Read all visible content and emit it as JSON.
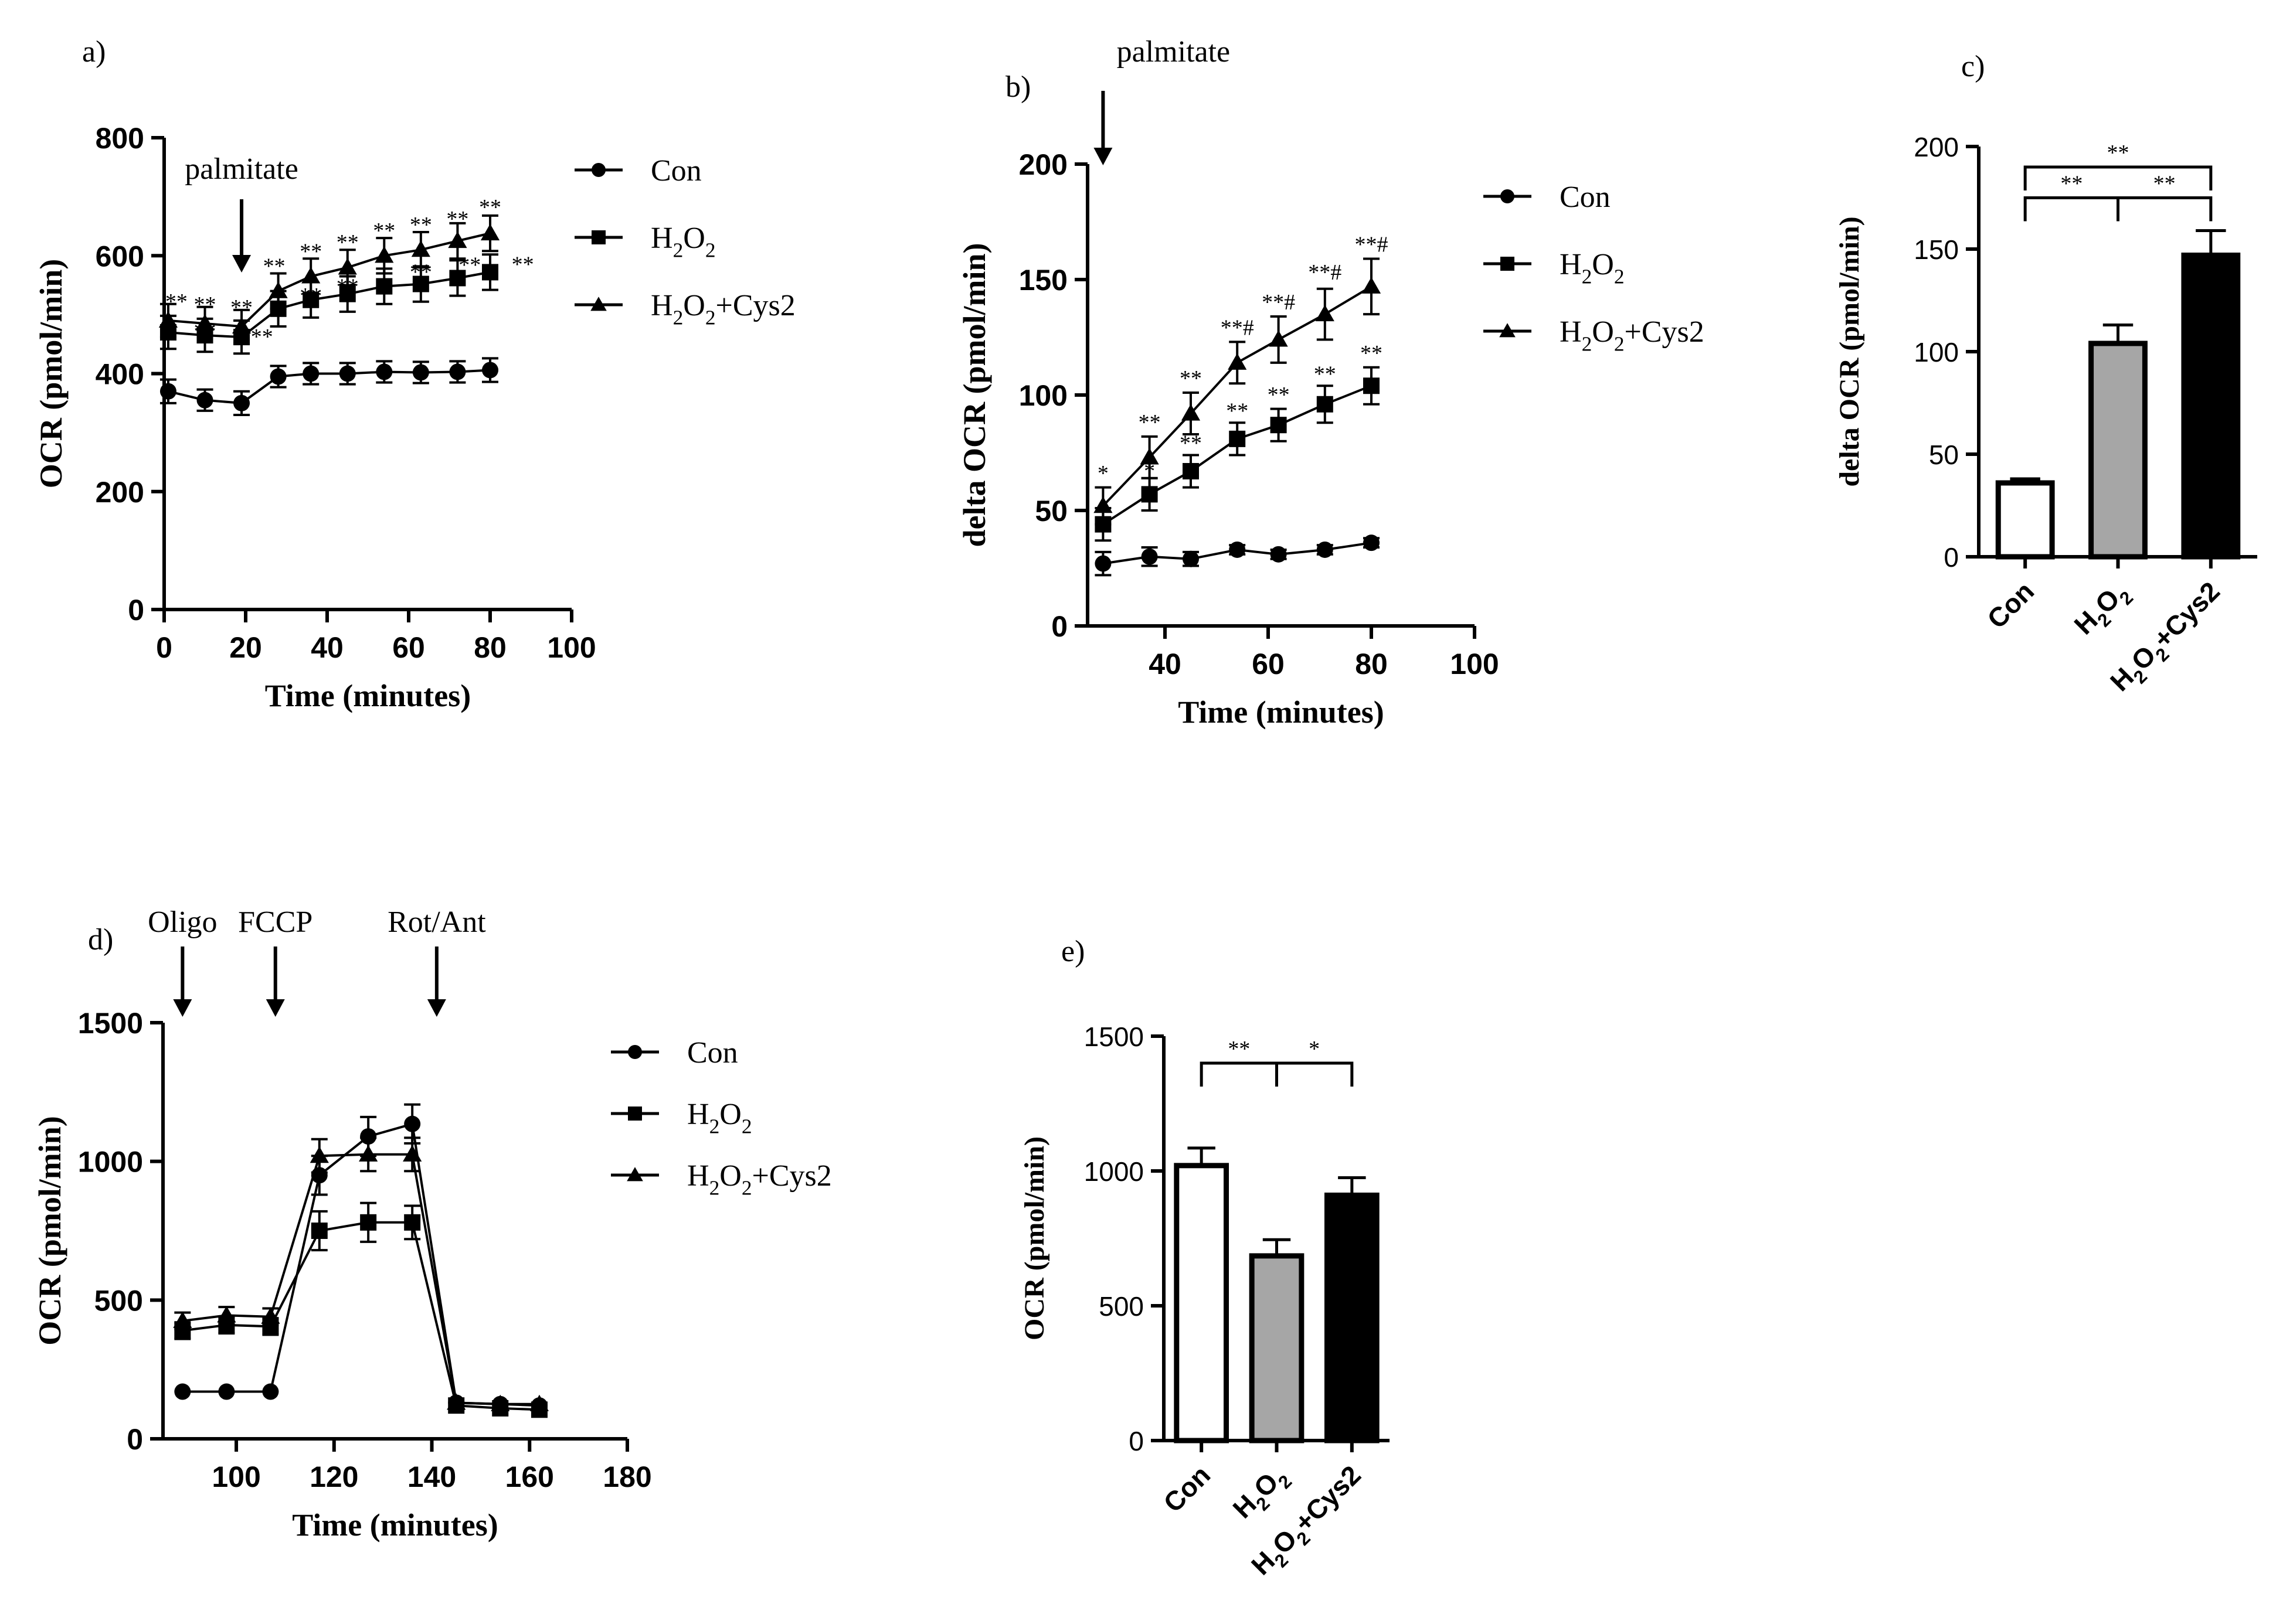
{
  "figure": {
    "series_names": [
      "Con",
      "H2O2",
      "H2O2+Cys2"
    ],
    "series_display": [
      {
        "main": "Con",
        "sub1": "",
        "mid": "",
        "sub2": "",
        "tail": ""
      },
      {
        "main": "H",
        "sub1": "2",
        "mid": "O",
        "sub2": "2",
        "tail": ""
      },
      {
        "main": "H",
        "sub1": "2",
        "mid": "O",
        "sub2": "2",
        "tail": "+Cys2"
      }
    ],
    "colors": {
      "con_bar": "#ffffff",
      "h2o2_bar": "#a6a6a6",
      "cys2_bar": "#000000",
      "ink": "#000000"
    }
  },
  "chart_data": [
    {
      "id": "a",
      "type": "line",
      "panel_label": "a)",
      "xlabel": "Time (minutes)",
      "ylabel": "OCR (pmol/min)",
      "xlim": [
        0,
        100
      ],
      "ylim": [
        0,
        800
      ],
      "xticks": [
        0,
        20,
        40,
        60,
        80,
        100
      ],
      "yticks": [
        0,
        200,
        400,
        600,
        800
      ],
      "annotations": [
        {
          "text": "palmitate",
          "x": 19
        }
      ],
      "series": [
        {
          "name": "Con",
          "marker": "circle",
          "x": [
            1,
            10,
            19,
            28,
            36,
            45,
            54,
            63,
            72,
            80
          ],
          "y": [
            370,
            355,
            350,
            395,
            400,
            400,
            403,
            402,
            403,
            406
          ],
          "err": [
            20,
            18,
            20,
            18,
            18,
            18,
            18,
            18,
            18,
            20
          ]
        },
        {
          "name": "H2O2",
          "marker": "square",
          "x": [
            1,
            10,
            19,
            28,
            36,
            45,
            54,
            63,
            72,
            80
          ],
          "y": [
            470,
            465,
            462,
            510,
            525,
            535,
            548,
            552,
            562,
            572
          ],
          "err": [
            28,
            28,
            28,
            30,
            30,
            30,
            30,
            30,
            30,
            30
          ]
        },
        {
          "name": "H2O2+Cys2",
          "marker": "triangle",
          "x": [
            1,
            10,
            19,
            28,
            36,
            45,
            54,
            63,
            72,
            80
          ],
          "y": [
            490,
            485,
            480,
            540,
            565,
            580,
            600,
            610,
            625,
            638
          ],
          "err": [
            28,
            28,
            28,
            30,
            30,
            30,
            30,
            30,
            30,
            30
          ]
        }
      ],
      "sig_labels": [
        {
          "text": "**",
          "x": 3,
          "y": 510
        },
        {
          "text": "**",
          "x": 10,
          "y": 505
        },
        {
          "text": "**",
          "x": 19,
          "y": 500
        },
        {
          "text": "**",
          "x": 27,
          "y": 570
        },
        {
          "text": "**",
          "x": 36,
          "y": 595
        },
        {
          "text": "**",
          "x": 45,
          "y": 610
        },
        {
          "text": "**",
          "x": 54,
          "y": 630
        },
        {
          "text": "**",
          "x": 63,
          "y": 640
        },
        {
          "text": "**",
          "x": 72,
          "y": 650
        },
        {
          "text": "**",
          "x": 80,
          "y": 670
        },
        {
          "text": "**",
          "x": 88,
          "y": 573
        },
        {
          "text": "**",
          "x": 10,
          "y": 460
        },
        {
          "text": "**",
          "x": 24,
          "y": 450
        },
        {
          "text": "**",
          "x": 36,
          "y": 520
        },
        {
          "text": "**",
          "x": 45,
          "y": 535
        },
        {
          "text": "**",
          "x": 63,
          "y": 560
        },
        {
          "text": "**",
          "x": 75,
          "y": 572
        }
      ]
    },
    {
      "id": "b",
      "type": "line",
      "panel_label": "b)",
      "xlabel": "Time (minutes)",
      "ylabel": "delta OCR (pmol/min)",
      "xlim": [
        25,
        100
      ],
      "ylim": [
        0,
        200
      ],
      "xticks": [
        40,
        60,
        80,
        100
      ],
      "yticks": [
        0,
        50,
        100,
        150,
        200
      ],
      "annotations": [
        {
          "text": "palmitate",
          "x": 28
        }
      ],
      "series": [
        {
          "name": "Con",
          "marker": "circle",
          "x": [
            28,
            37,
            45,
            54,
            62,
            71,
            80
          ],
          "y": [
            27,
            30,
            29,
            33,
            31,
            33,
            36
          ],
          "err": [
            5,
            4,
            3,
            2,
            2,
            2,
            2
          ]
        },
        {
          "name": "H2O2",
          "marker": "square",
          "x": [
            28,
            37,
            45,
            54,
            62,
            71,
            80
          ],
          "y": [
            44,
            57,
            67,
            81,
            87,
            96,
            104
          ],
          "err": [
            7,
            7,
            7,
            7,
            7,
            8,
            8
          ]
        },
        {
          "name": "H2O2+Cys2",
          "marker": "triangle",
          "x": [
            28,
            37,
            45,
            54,
            62,
            71,
            80
          ],
          "y": [
            52,
            73,
            92,
            114,
            124,
            135,
            147
          ],
          "err": [
            8,
            9,
            9,
            9,
            10,
            11,
            12
          ]
        }
      ],
      "sig_labels": [
        {
          "text": "*",
          "x": 28,
          "y": 63
        },
        {
          "text": "**",
          "x": 37,
          "y": 85
        },
        {
          "text": "**",
          "x": 45,
          "y": 104
        },
        {
          "text": "**#",
          "x": 54,
          "y": 126
        },
        {
          "text": "**#",
          "x": 62,
          "y": 137
        },
        {
          "text": "**#",
          "x": 71,
          "y": 150
        },
        {
          "text": "**#",
          "x": 80,
          "y": 162
        },
        {
          "text": "*",
          "x": 37,
          "y": 64
        },
        {
          "text": "**",
          "x": 45,
          "y": 76
        },
        {
          "text": "**",
          "x": 54,
          "y": 90
        },
        {
          "text": "**",
          "x": 62,
          "y": 97
        },
        {
          "text": "**",
          "x": 71,
          "y": 106
        },
        {
          "text": "**",
          "x": 80,
          "y": 115
        }
      ]
    },
    {
      "id": "c",
      "type": "bar",
      "panel_label": "c)",
      "ylabel": "delta OCR (pmol/min)",
      "ylim": [
        0,
        200
      ],
      "yticks": [
        0,
        50,
        100,
        150,
        200
      ],
      "categories": [
        "Con",
        "H2O2",
        "H2O2+Cys2"
      ],
      "values": [
        36,
        104,
        147
      ],
      "err": [
        2,
        9,
        12
      ],
      "brackets": [
        {
          "from": 0,
          "to": 1,
          "y": 175,
          "text": "**"
        },
        {
          "from": 1,
          "to": 2,
          "y": 175,
          "text": "**"
        },
        {
          "from": 0,
          "to": 2,
          "y": 190,
          "text": "**"
        }
      ]
    },
    {
      "id": "d",
      "type": "line",
      "panel_label": "d)",
      "xlabel": "Time (minutes)",
      "ylabel": "OCR (pmol/min)",
      "xlim": [
        85,
        180
      ],
      "ylim": [
        0,
        1500
      ],
      "xticks": [
        100,
        120,
        140,
        160,
        180
      ],
      "yticks": [
        0,
        500,
        1000,
        1500
      ],
      "annotations": [
        {
          "text": "Oligo",
          "x": 89
        },
        {
          "text": "FCCP",
          "x": 108
        },
        {
          "text": "Rot/Ant",
          "x": 141
        }
      ],
      "series": [
        {
          "name": "Con",
          "marker": "circle",
          "x": [
            89,
            98,
            107,
            117,
            127,
            136,
            145,
            154,
            162
          ],
          "y": [
            170,
            170,
            170,
            950,
            1090,
            1135,
            130,
            125,
            120
          ],
          "err": [
            0,
            0,
            0,
            70,
            70,
            70,
            0,
            0,
            0
          ]
        },
        {
          "name": "H2O2",
          "marker": "square",
          "x": [
            89,
            98,
            107,
            117,
            127,
            136,
            145,
            154,
            162
          ],
          "y": [
            390,
            410,
            405,
            750,
            780,
            780,
            120,
            110,
            105
          ],
          "err": [
            30,
            30,
            30,
            70,
            70,
            60,
            0,
            0,
            0
          ]
        },
        {
          "name": "H2O2+Cys2",
          "marker": "triangle",
          "x": [
            89,
            98,
            107,
            117,
            127,
            136,
            145,
            154,
            162
          ],
          "y": [
            425,
            445,
            440,
            1020,
            1025,
            1025,
            130,
            125,
            125
          ],
          "err": [
            30,
            30,
            30,
            60,
            60,
            60,
            0,
            0,
            0
          ]
        }
      ]
    },
    {
      "id": "e",
      "type": "bar",
      "panel_label": "e)",
      "ylabel": "OCR (pmol/min)",
      "ylim": [
        0,
        1500
      ],
      "yticks": [
        0,
        500,
        1000,
        1500
      ],
      "categories": [
        "Con",
        "H2O2",
        "H2O2+Cys2"
      ],
      "values": [
        1020,
        685,
        910
      ],
      "err": [
        65,
        60,
        65
      ],
      "brackets": [
        {
          "from": 0,
          "to": 1,
          "y": 1400,
          "text": "**"
        },
        {
          "from": 1,
          "to": 2,
          "y": 1400,
          "text": "*"
        }
      ]
    }
  ]
}
